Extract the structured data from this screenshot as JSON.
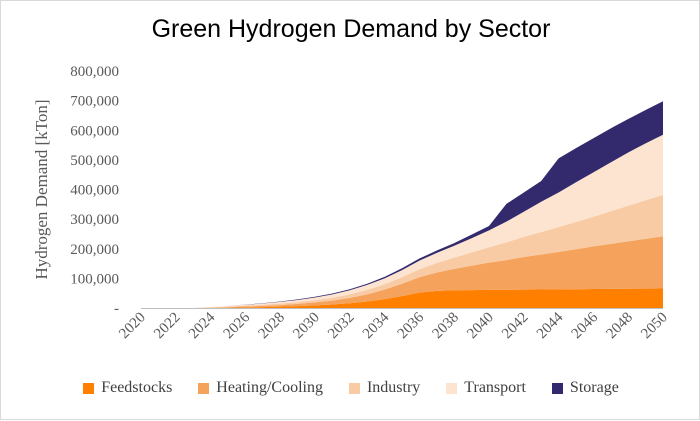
{
  "chart_data": {
    "type": "area",
    "stacked": true,
    "title": "Green Hydrogen Demand by Sector",
    "ylabel": "Hydrogen Demand [kTon]",
    "xlabel": "",
    "ylim": [
      0,
      800000
    ],
    "y_ticks": [
      "-",
      "100,000",
      "200,000",
      "300,000",
      "400,000",
      "500,000",
      "600,000",
      "700,000",
      "800,000"
    ],
    "x_tick_labels": [
      "2020",
      "2022",
      "2024",
      "2026",
      "2028",
      "2030",
      "2032",
      "2034",
      "2036",
      "2038",
      "2040",
      "2042",
      "2044",
      "2046",
      "2048",
      "2050"
    ],
    "legend_position": "bottom",
    "x": [
      2020,
      2021,
      2022,
      2023,
      2024,
      2025,
      2026,
      2027,
      2028,
      2029,
      2030,
      2031,
      2032,
      2033,
      2034,
      2035,
      2036,
      2037,
      2038,
      2039,
      2040,
      2041,
      2042,
      2043,
      2044,
      2045,
      2046,
      2047,
      2048,
      2049,
      2050
    ],
    "series": [
      {
        "name": "Feedstocks",
        "color": "#ff8000",
        "values": [
          0,
          0,
          0,
          0,
          300,
          1000,
          2000,
          3000,
          4500,
          6500,
          9000,
          12000,
          16000,
          22000,
          30000,
          40000,
          52000,
          58000,
          60000,
          60500,
          61000,
          61500,
          62000,
          62500,
          63000,
          63500,
          64000,
          64500,
          65000,
          65500,
          66000
        ]
      },
      {
        "name": "Heating/Cooling",
        "color": "#f4a25c",
        "values": [
          0,
          0,
          0,
          0,
          1000,
          2000,
          3000,
          4000,
          5500,
          7500,
          10000,
          13000,
          18000,
          24000,
          32000,
          42000,
          52000,
          62000,
          72000,
          82000,
          92000,
          100000,
          110000,
          118000,
          126000,
          135000,
          144000,
          152000,
          160000,
          168000,
          176000
        ]
      },
      {
        "name": "Industry",
        "color": "#f8cba5",
        "values": [
          0,
          0,
          0,
          0,
          1000,
          2000,
          3000,
          4000,
          5000,
          6000,
          7500,
          9500,
          12000,
          15000,
          18000,
          22000,
          27000,
          32000,
          38000,
          45000,
          52000,
          60000,
          68000,
          76000,
          84000,
          92000,
          100000,
          110000,
          120000,
          130000,
          140000
        ]
      },
      {
        "name": "Transport",
        "color": "#fde4d0",
        "values": [
          0,
          0,
          0,
          0,
          1000,
          2000,
          3000,
          4000,
          5500,
          7000,
          9000,
          11500,
          14000,
          17000,
          20000,
          24000,
          29000,
          34000,
          40000,
          48000,
          57000,
          70000,
          85000,
          102000,
          117000,
          134000,
          150000,
          165000,
          180000,
          192000,
          203000
        ]
      },
      {
        "name": "Storage",
        "color": "#332a6e",
        "values": [
          0,
          0,
          0,
          0,
          0,
          0,
          500,
          1000,
          1500,
          2000,
          2500,
          3000,
          3500,
          4000,
          5000,
          6000,
          7000,
          8000,
          9000,
          12000,
          15000,
          60000,
          65000,
          70000,
          115000,
          115000,
          115000,
          115000,
          113000,
          113000,
          113000
        ]
      }
    ]
  }
}
